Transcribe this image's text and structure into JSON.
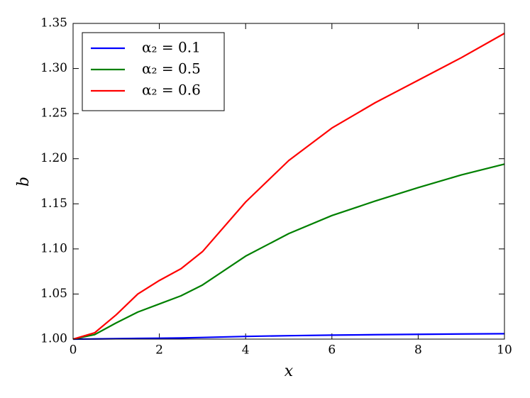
{
  "chart_data": {
    "type": "line",
    "xlabel": "x",
    "ylabel": "b",
    "x": [
      0,
      0.5,
      1,
      1.5,
      2,
      2.5,
      3,
      4,
      5,
      6,
      7,
      8,
      9,
      10
    ],
    "series": [
      {
        "name": "α₂ = 0.1",
        "color": "#0000ff",
        "values": [
          1.0,
          1.0002,
          1.0005,
          1.0008,
          1.001,
          1.0013,
          1.0018,
          1.003,
          1.0038,
          1.0044,
          1.0049,
          1.0053,
          1.0057,
          1.006
        ]
      },
      {
        "name": "α₂ = 0.5",
        "color": "#008000",
        "values": [
          1.0,
          1.005,
          1.018,
          1.03,
          1.039,
          1.048,
          1.06,
          1.092,
          1.117,
          1.137,
          1.153,
          1.168,
          1.182,
          1.194
        ]
      },
      {
        "name": "α₂ = 0.6",
        "color": "#ff0000",
        "values": [
          1.0,
          1.007,
          1.027,
          1.05,
          1.065,
          1.078,
          1.097,
          1.152,
          1.198,
          1.234,
          1.262,
          1.287,
          1.312,
          1.339
        ]
      }
    ],
    "xlim": [
      0,
      10
    ],
    "xticks": [
      0,
      2,
      4,
      6,
      8,
      10
    ],
    "ylim": [
      1.0,
      1.35
    ],
    "yticks": [
      {
        "value": 1.0,
        "label": "1.00"
      },
      {
        "value": 1.05,
        "label": "1.05"
      },
      {
        "value": 1.1,
        "label": "1.10"
      },
      {
        "value": 1.15,
        "label": "1.15"
      },
      {
        "value": 1.2,
        "label": "1.20"
      },
      {
        "value": 1.25,
        "label": "1.25"
      },
      {
        "value": 1.3,
        "label": "1.30"
      },
      {
        "value": 1.35,
        "label": "1.35"
      }
    ],
    "legend": "upper left",
    "grid": false
  }
}
